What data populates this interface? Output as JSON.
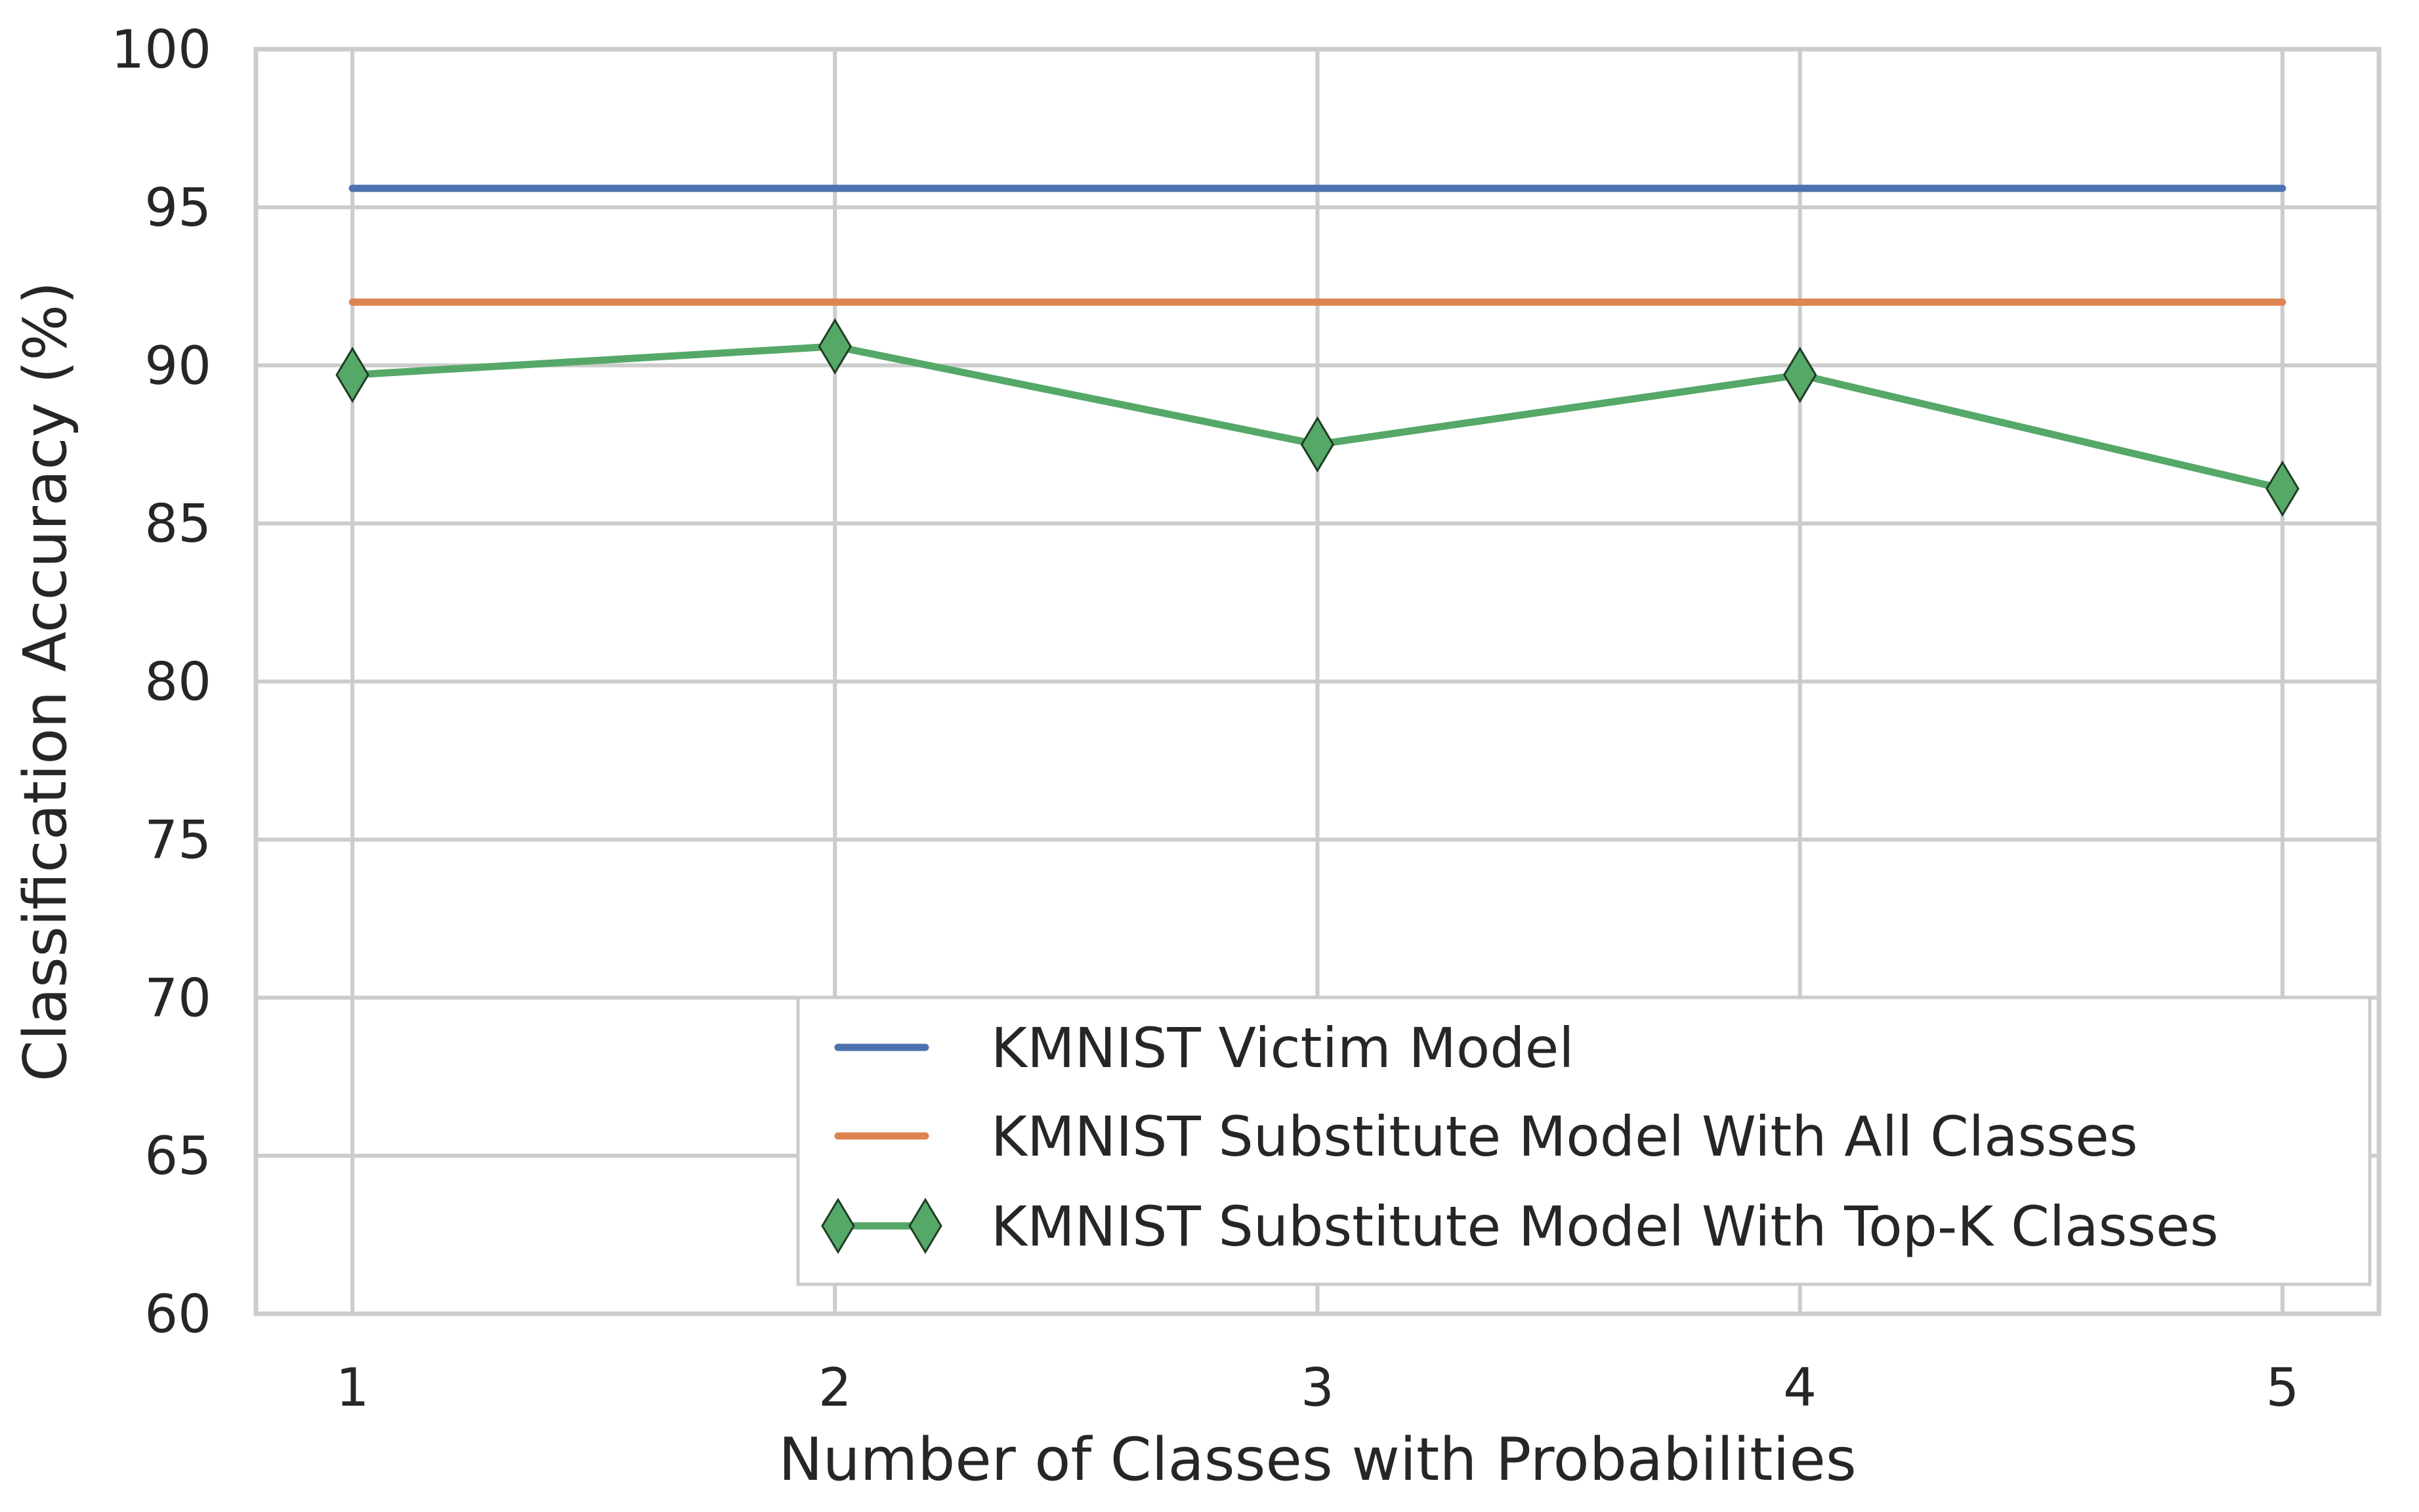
{
  "chart_data": {
    "type": "line",
    "title": "",
    "xlabel": "Number of Classes with Probabilities",
    "ylabel": "Classification Accuracy (%)",
    "x": [
      1,
      2,
      3,
      4,
      5
    ],
    "x_ticks": [
      "1",
      "2",
      "3",
      "4",
      "5"
    ],
    "xlim": [
      0.8,
      5.2
    ],
    "ylim": [
      60,
      100
    ],
    "y_ticks": [
      "60",
      "65",
      "70",
      "75",
      "80",
      "85",
      "90",
      "95",
      "100"
    ],
    "grid": true,
    "legend_position": "lower-right",
    "series": [
      {
        "name": "KMNIST Victim Model",
        "color": "#4c72b0",
        "marker": "none",
        "values": [
          95.6,
          95.6,
          95.6,
          95.6,
          95.6
        ]
      },
      {
        "name": "KMNIST Substitute Model With All Classes",
        "color": "#dd8452",
        "marker": "none",
        "values": [
          92.0,
          92.0,
          92.0,
          92.0,
          92.0
        ]
      },
      {
        "name": "KMNIST Substitute Model With Top-K Classes",
        "color": "#55a868",
        "marker": "diamond",
        "values": [
          89.7,
          90.6,
          87.5,
          89.7,
          86.1
        ]
      }
    ]
  }
}
